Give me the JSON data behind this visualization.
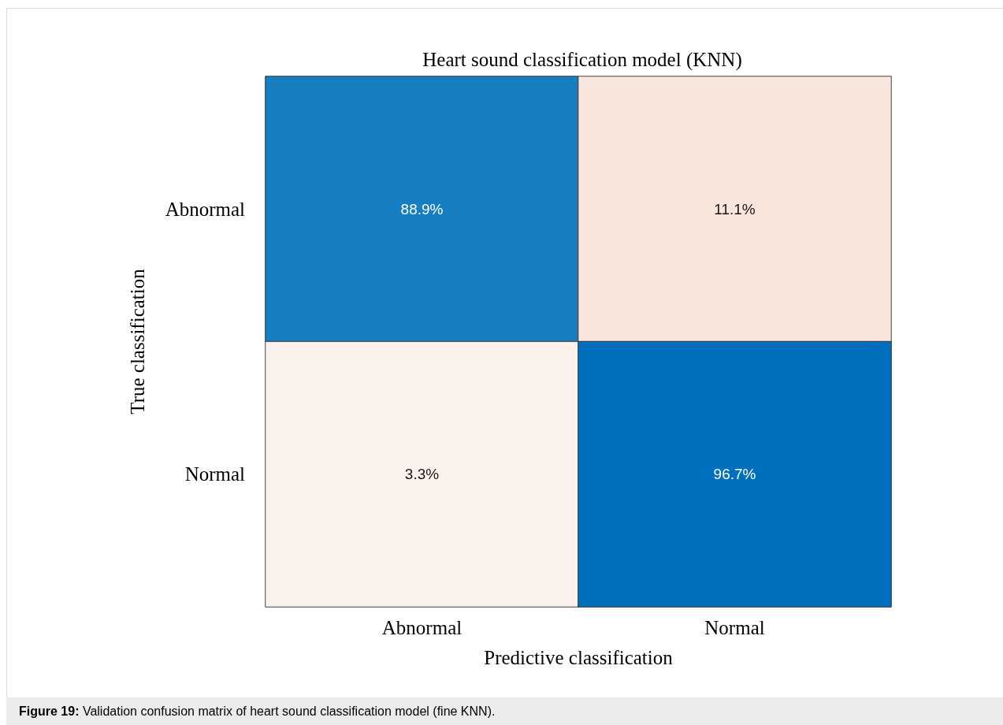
{
  "chart_data": {
    "type": "heatmap",
    "title": "Heart sound classification model (KNN)",
    "xlabel": "Predictive classification",
    "ylabel": "True classification",
    "categories": [
      "Abnormal",
      "Normal"
    ],
    "y_categories": [
      "Abnormal",
      "Normal"
    ],
    "cells": [
      [
        88.9,
        11.1
      ],
      [
        3.3,
        96.7
      ]
    ],
    "cell_labels": [
      [
        "88.9%",
        "11.1%"
      ],
      [
        "3.3%",
        "96.7%"
      ]
    ],
    "colors": [
      "#157dc2",
      "#f7e3d9",
      "#fbefeb",
      "#0070be"
    ],
    "annotations": [
      "Figure 19: Validation confusion matrix of heart sound classification model (fine KNN)."
    ]
  }
}
